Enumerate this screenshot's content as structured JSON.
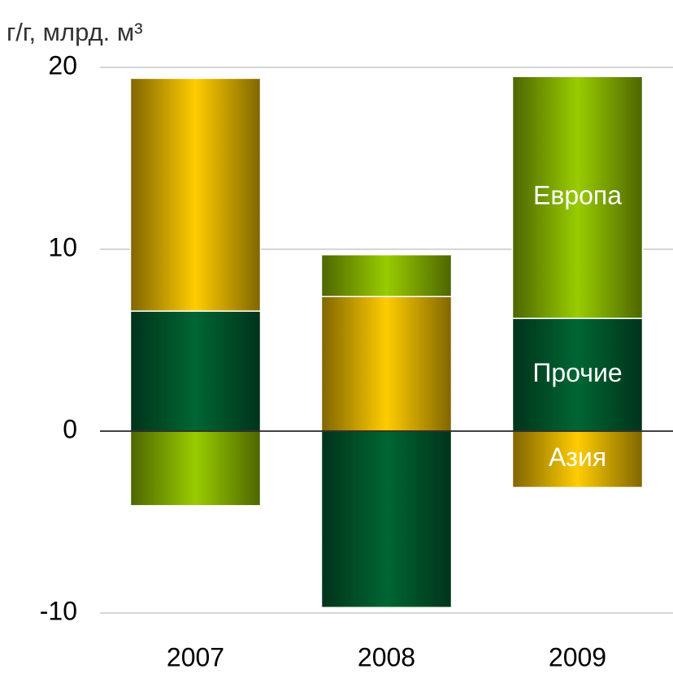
{
  "chart_data": {
    "type": "bar",
    "stacked": true,
    "y_label": "г/г, млрд. м³",
    "categories": [
      "2007",
      "2008",
      "2009"
    ],
    "series": [
      {
        "name": "Прочие",
        "color": "#006633",
        "values": [
          6.6,
          -9.7,
          6.2
        ]
      },
      {
        "name": "Азия",
        "color": "#ffcc00",
        "values": [
          12.8,
          7.4,
          -3.1
        ]
      },
      {
        "name": "Европа",
        "color": "#99cc00",
        "values": [
          -4.1,
          2.3,
          13.3
        ]
      }
    ],
    "ylim": [
      -10,
      20
    ],
    "yticks": [
      -10,
      0,
      10,
      20
    ],
    "grid": true
  }
}
